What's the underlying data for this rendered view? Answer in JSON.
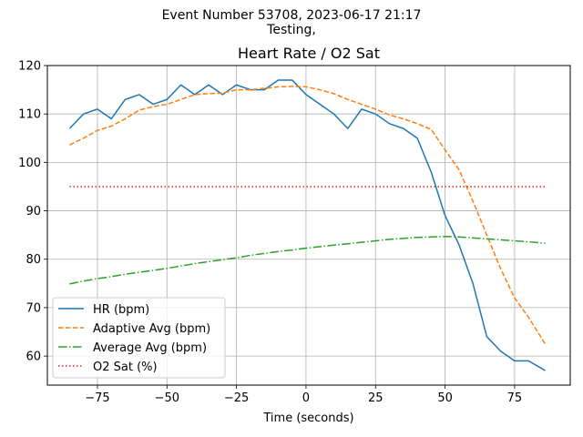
{
  "suptitle_line1": "Event Number 53708, 2023-06-17 21:17",
  "suptitle_line2": "Testing,",
  "chart_data": {
    "type": "line",
    "title": "Heart Rate / O2 Sat",
    "xlabel": "Time (seconds)",
    "ylabel": "",
    "xlim": [
      -93,
      95
    ],
    "ylim": [
      54,
      120
    ],
    "xticks": [
      -75,
      -50,
      -25,
      0,
      25,
      50,
      75
    ],
    "xtick_labels": [
      "−75",
      "−50",
      "−25",
      "0",
      "25",
      "50",
      "75"
    ],
    "yticks": [
      60,
      70,
      80,
      90,
      100,
      110,
      120
    ],
    "ytick_labels": [
      "60",
      "70",
      "80",
      "90",
      "100",
      "110",
      "120"
    ],
    "grid": true,
    "legend_position": "lower-left",
    "x": [
      -85,
      -80,
      -75,
      -70,
      -65,
      -60,
      -55,
      -50,
      -45,
      -40,
      -35,
      -30,
      -25,
      -20,
      -15,
      -10,
      -5,
      0,
      5,
      10,
      15,
      20,
      25,
      30,
      35,
      40,
      45,
      50,
      55,
      60,
      65,
      70,
      75,
      80,
      86
    ],
    "series": [
      {
        "name": "HR (bpm)",
        "color": "#1f77b4",
        "dash": "solid",
        "values": [
          107,
          110,
          111,
          109,
          113,
          114,
          112,
          113,
          116,
          114,
          116,
          114,
          116,
          115,
          115,
          117,
          117,
          114,
          112,
          110,
          107,
          111,
          110,
          108,
          107,
          105,
          98,
          89,
          83,
          75,
          64,
          61,
          59,
          59,
          57
        ]
      },
      {
        "name": "Adaptive Avg (bpm)",
        "color": "#ff7f0e",
        "dash": "dashed",
        "values": [
          103.6,
          105,
          106.6,
          107.5,
          109,
          110.8,
          111.5,
          112,
          113,
          114,
          114.2,
          114.3,
          115,
          115,
          115.3,
          115.6,
          115.7,
          115.6,
          115,
          114.2,
          113,
          112,
          111,
          109.8,
          109,
          108,
          106.8,
          102.6,
          98.5,
          92,
          85,
          78,
          72,
          68,
          62.5
        ]
      },
      {
        "name": "Average Avg (bpm)",
        "color": "#2ca02c",
        "dash": "dashdot",
        "values": [
          74.9,
          75.5,
          76,
          76.4,
          76.9,
          77.3,
          77.7,
          78.1,
          78.6,
          79.1,
          79.5,
          79.9,
          80.3,
          80.8,
          81.2,
          81.6,
          81.9,
          82.3,
          82.6,
          82.9,
          83.2,
          83.5,
          83.8,
          84.1,
          84.3,
          84.5,
          84.6,
          84.7,
          84.6,
          84.4,
          84.2,
          84,
          83.8,
          83.6,
          83.3
        ]
      },
      {
        "name": "O2 Sat (%)",
        "color": "#d62728",
        "dash": "dotted",
        "values": [
          95,
          95,
          95,
          95,
          95,
          95,
          95,
          95,
          95,
          95,
          95,
          95,
          95,
          95,
          95,
          95,
          95,
          95,
          95,
          95,
          95,
          95,
          95,
          95,
          95,
          95,
          95,
          95,
          95,
          95,
          95,
          95,
          95,
          95,
          95
        ]
      }
    ]
  }
}
